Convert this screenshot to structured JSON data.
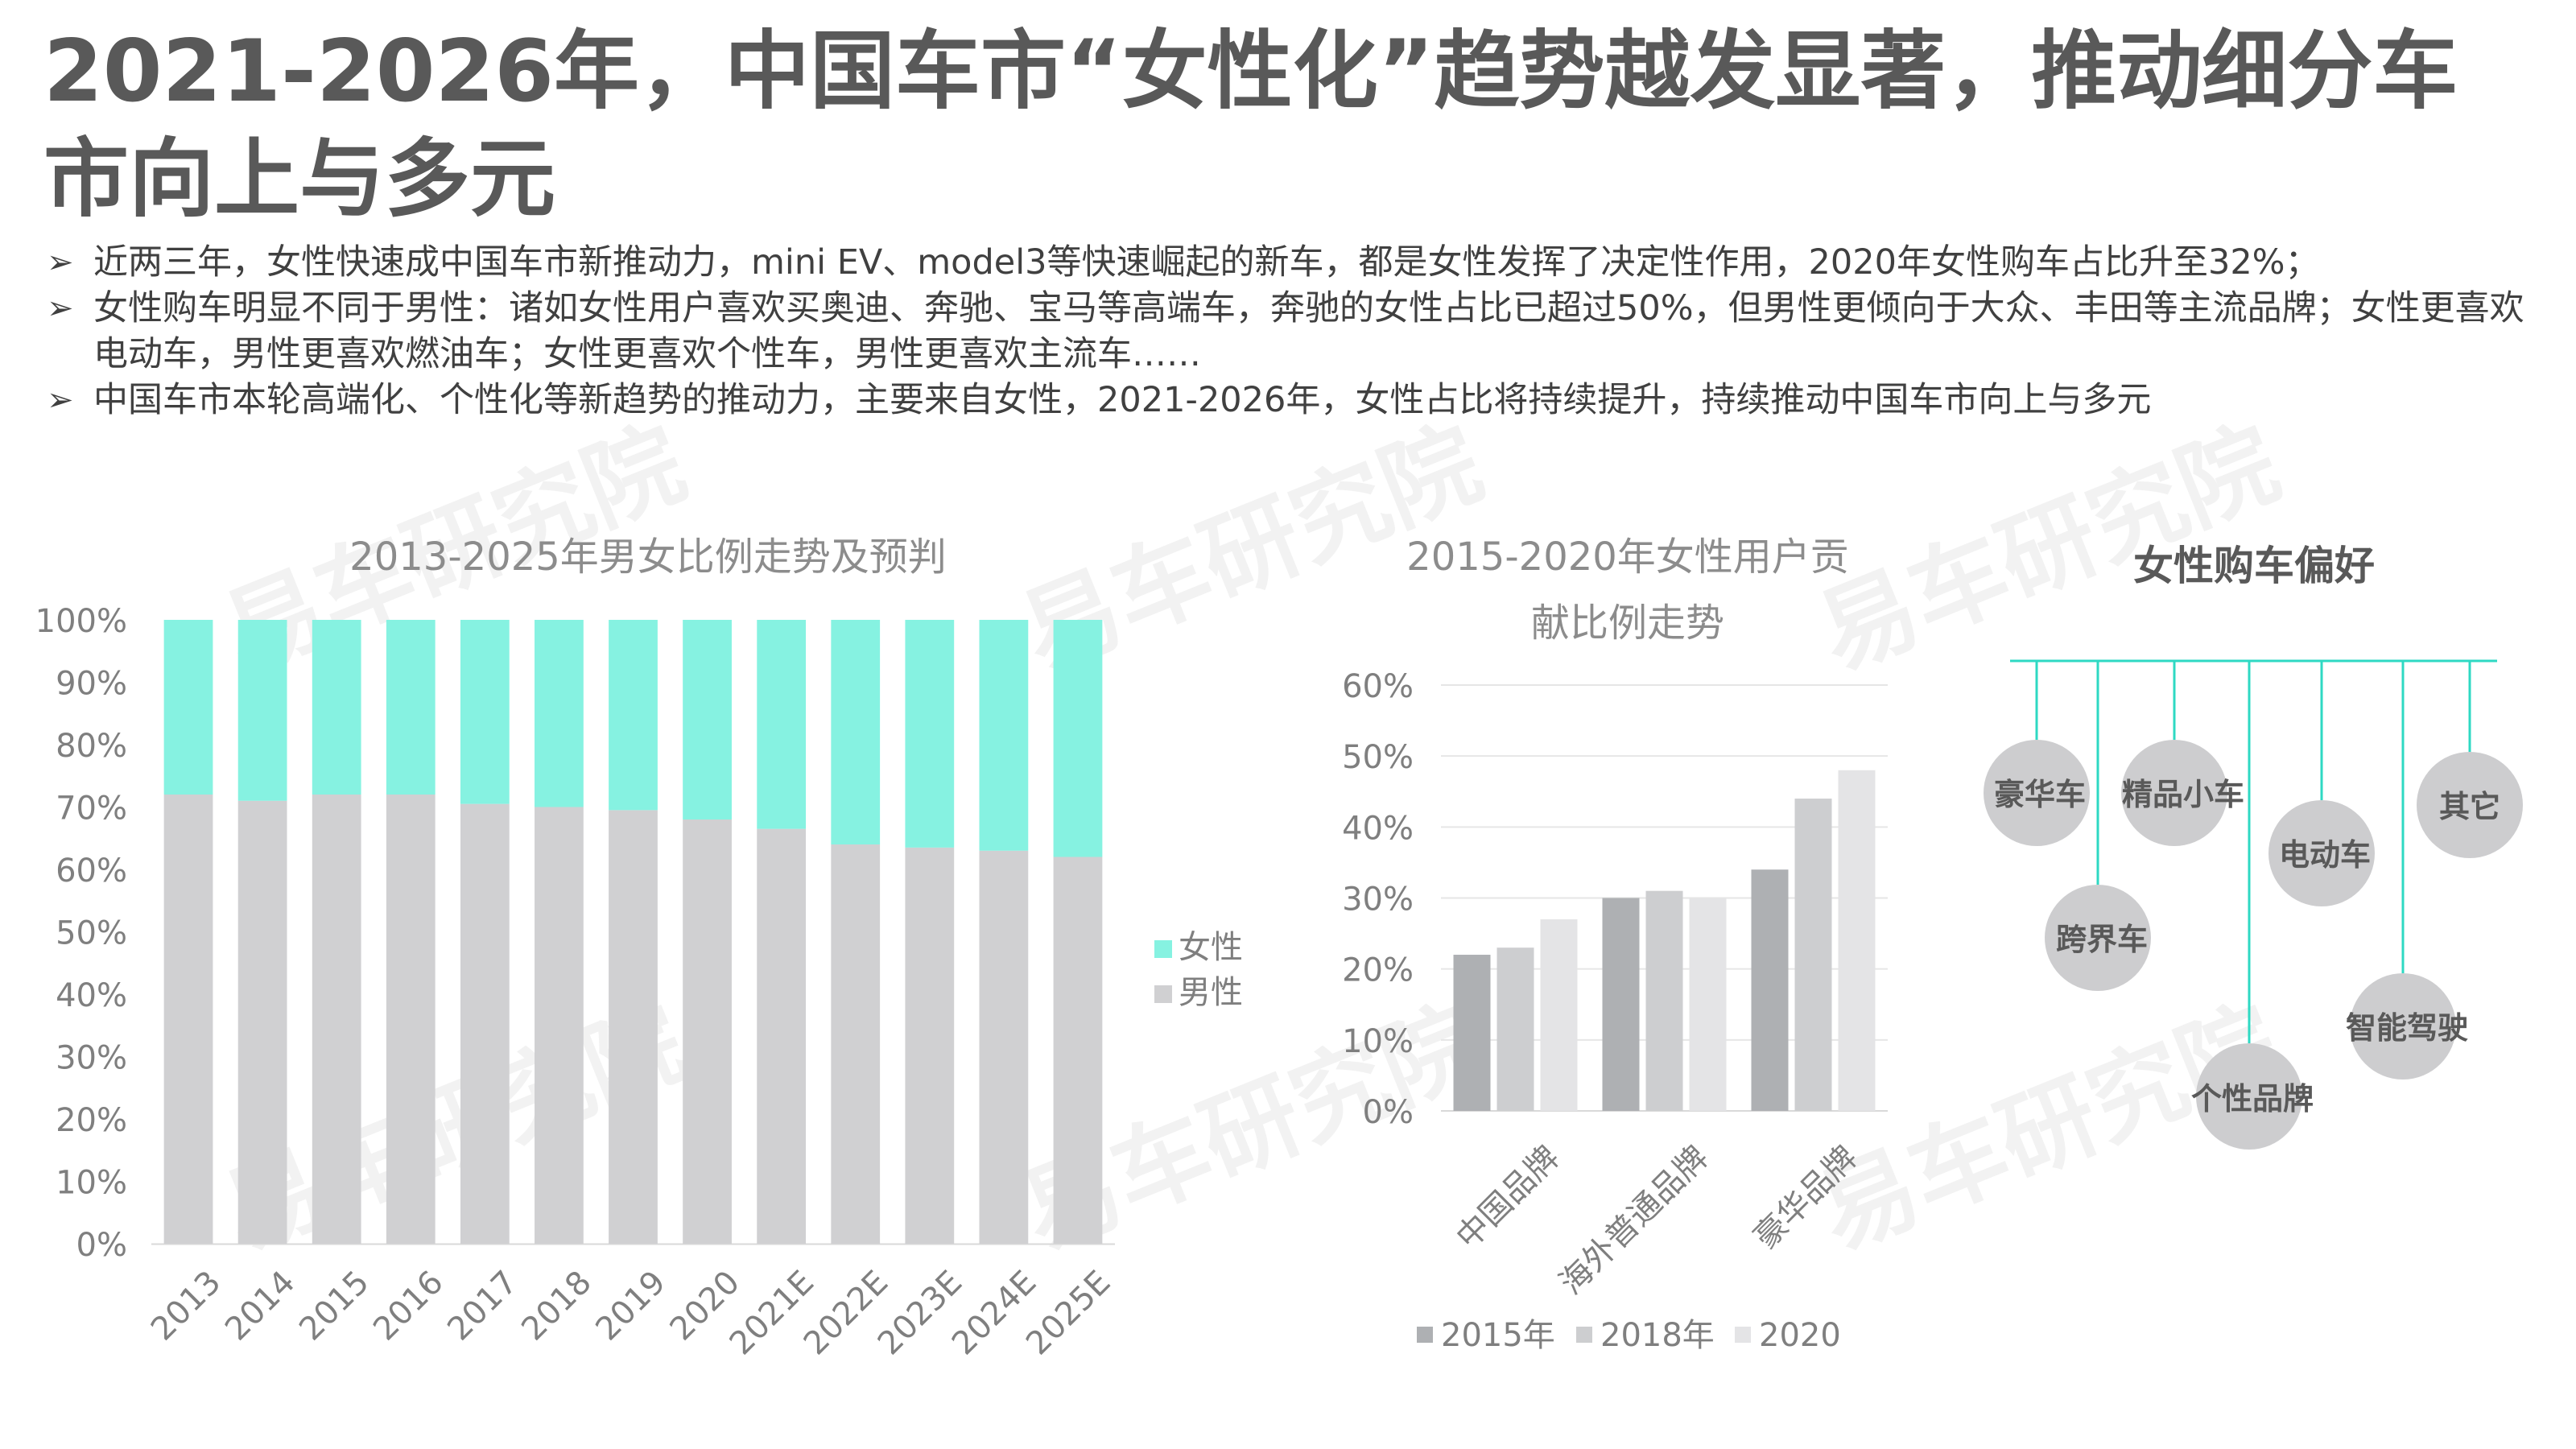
{
  "title": "2021-2026年，中国车市“女性化”趋势越发显著，推动细分车市向上与多元",
  "bullets": [
    "近两三年，女性快速成中国车市新推动力，mini EV、model3等快速崛起的新车，都是女性发挥了决定性作用，2020年女性购车占比升至32%；",
    "女性购车明显不同于男性：诸如女性用户喜欢买奥迪、奔驰、宝马等高端车，奔驰的女性占比已超过50%，但男性更倾向于大众、丰田等主流品牌；女性更喜欢电动车，男性更喜欢燃油车；女性更喜欢个性车，男性更喜欢主流车……",
    "中国车市本轮高端化、个性化等新趋势的推动力，主要来自女性，2021-2026年，女性占比将持续提升，持续推动中国车市向上与多元"
  ],
  "bullet_marker": "➢",
  "watermark": "易车研究院",
  "colors": {
    "female": "#86F2E1",
    "male": "#D0D0D2",
    "s2015": "#AEB0B3",
    "s2018": "#CDCED0",
    "s2020": "#E4E4E6",
    "tree_line": "#2ED9C3",
    "circle": "#CDCDCF",
    "axis_text": "#7F7F7F"
  },
  "chart_data": [
    {
      "type": "bar",
      "stacked": true,
      "title": "2013-2025年男女比例走势及预判",
      "categories": [
        "2013",
        "2014",
        "2015",
        "2016",
        "2017",
        "2018",
        "2019",
        "2020",
        "2021E",
        "2022E",
        "2023E",
        "2024E",
        "2025E"
      ],
      "series": [
        {
          "name": "男性",
          "values": [
            72,
            71,
            72,
            72,
            70.5,
            70,
            69.5,
            68,
            66.5,
            64,
            63.5,
            63,
            62
          ]
        },
        {
          "name": "女性",
          "values": [
            28,
            29,
            28,
            28,
            29.5,
            30,
            30.5,
            32,
            33.5,
            36,
            36.5,
            37,
            38
          ]
        }
      ],
      "ylim": [
        0,
        100
      ],
      "yticks": [
        "0%",
        "10%",
        "20%",
        "30%",
        "40%",
        "50%",
        "60%",
        "70%",
        "80%",
        "90%",
        "100%"
      ],
      "legend": [
        "女性",
        "男性"
      ],
      "legend_position": "right"
    },
    {
      "type": "bar",
      "title": [
        "2015-2020年女性用户贡",
        "献比例走势"
      ],
      "categories": [
        "中国品牌",
        "海外普通品牌",
        "豪华品牌"
      ],
      "series": [
        {
          "name": "2015年",
          "values": [
            22,
            30,
            34
          ]
        },
        {
          "name": "2018年",
          "values": [
            23,
            31,
            44
          ]
        },
        {
          "name": "2020",
          "values": [
            27,
            30,
            48
          ]
        }
      ],
      "ylim": [
        0,
        60
      ],
      "yticks": [
        "0%",
        "10%",
        "20%",
        "30%",
        "40%",
        "50%",
        "60%"
      ],
      "legend_position": "bottom"
    }
  ],
  "preference": {
    "title": "女性购车偏好",
    "items": [
      "豪华车",
      "跨界车",
      "精品小车",
      "个性品牌",
      "电动车",
      "智能驾驶",
      "其它"
    ]
  }
}
